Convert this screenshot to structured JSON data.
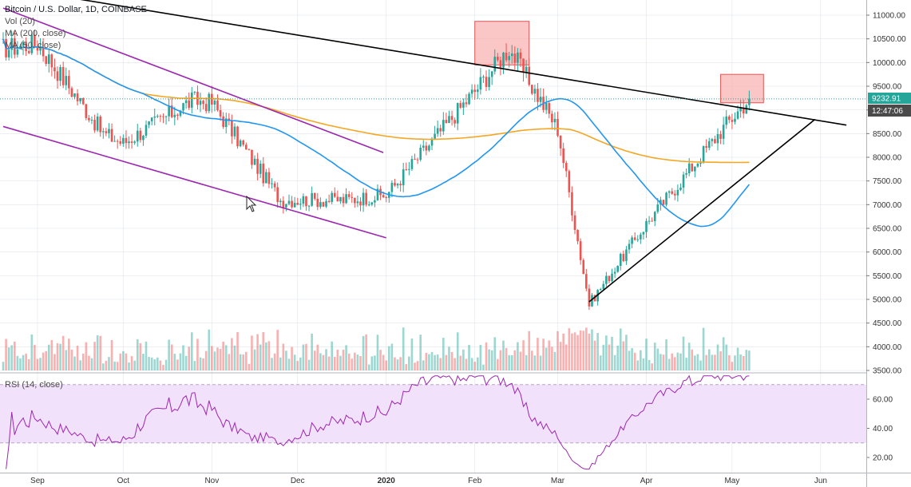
{
  "header": {
    "title": "Bitcoin / U.S. Dollar, 1D, COINBASE",
    "indicators": [
      "Vol (20)",
      "MA (200, close)",
      "MA (50, close)"
    ]
  },
  "rsi_label": "RSI (14, close)",
  "price_badge": {
    "value": "9232.91",
    "countdown": "12:47:06",
    "color": "#26a69a",
    "dark": "#4a4a4a"
  },
  "colors": {
    "up": "#26a69a",
    "down": "#ef5350",
    "ma50": "#2196f3",
    "ma200": "#f5a623",
    "channel": "#9c27b0",
    "trend": "#000000",
    "zone_fill": "#f8b3b3",
    "zone_stroke": "#e05555",
    "rsi_band": "#f2e1fb",
    "rsi_line": "#9c27b0",
    "grid": "#e0e3eb"
  },
  "chart_data": [
    {
      "type": "candlestick",
      "title": "Bitcoin / U.S. Dollar, 1D, COINBASE",
      "x_ticks": [
        "Sep",
        "Oct",
        "Nov",
        "Dec",
        "2020",
        "Feb",
        "Mar",
        "Apr",
        "May",
        "Jun"
      ],
      "y_ticks": [
        3500,
        4000,
        4500,
        5000,
        5500,
        6000,
        6500,
        7000,
        7500,
        8000,
        8500,
        9000,
        9500,
        10000,
        10500,
        11000
      ],
      "ylim": [
        3500,
        11200
      ],
      "last_price": 9232.91,
      "ohlc_samples": [
        {
          "date": "2019-08-20",
          "close": 10300
        },
        {
          "date": "2019-09-01",
          "close": 10400
        },
        {
          "date": "2019-09-24",
          "close": 8500
        },
        {
          "date": "2019-10-01",
          "close": 8300
        },
        {
          "date": "2019-10-25",
          "close": 9200
        },
        {
          "date": "2019-11-01",
          "close": 9150
        },
        {
          "date": "2019-11-25",
          "close": 7100
        },
        {
          "date": "2019-12-18",
          "close": 7100
        },
        {
          "date": "2020-01-01",
          "close": 7200
        },
        {
          "date": "2020-02-01",
          "close": 9400
        },
        {
          "date": "2020-02-13",
          "close": 10300
        },
        {
          "date": "2020-03-01",
          "close": 8600
        },
        {
          "date": "2020-03-12",
          "close": 4900
        },
        {
          "date": "2020-04-01",
          "close": 6600
        },
        {
          "date": "2020-04-29",
          "close": 8700
        },
        {
          "date": "2020-05-07",
          "close": 9232
        }
      ],
      "series": [
        {
          "name": "MA (50, close)"
        },
        {
          "name": "MA (200, close)"
        }
      ],
      "annotations": {
        "resistance_zones": [
          {
            "from": "2020-02-01",
            "to": "2020-02-20",
            "low": 9950,
            "high": 10870
          },
          {
            "from": "2020-04-27",
            "to": "2020-05-12",
            "low": 9150,
            "high": 9750
          }
        ],
        "descending_trendline": [
          {
            "date": "2019-08-20",
            "price": 11600
          },
          {
            "date": "2020-06-10",
            "price": 8680
          }
        ],
        "ascending_trendline": [
          {
            "date": "2020-03-12",
            "price": 4950
          },
          {
            "date": "2020-05-30",
            "price": 8800
          }
        ],
        "channel_upper": [
          {
            "date": "2019-08-20",
            "price": 11150
          },
          {
            "date": "2019-12-31",
            "price": 8100
          }
        ],
        "channel_lower": [
          {
            "date": "2019-08-20",
            "price": 8650
          },
          {
            "date": "2020-01-01",
            "price": 6300
          }
        ]
      }
    },
    {
      "type": "line",
      "title": "RSI (14, close)",
      "y_ticks": [
        20,
        40,
        60
      ],
      "ylim": [
        12,
        76
      ],
      "overbought": 70,
      "oversold": 30,
      "last": 72
    }
  ]
}
